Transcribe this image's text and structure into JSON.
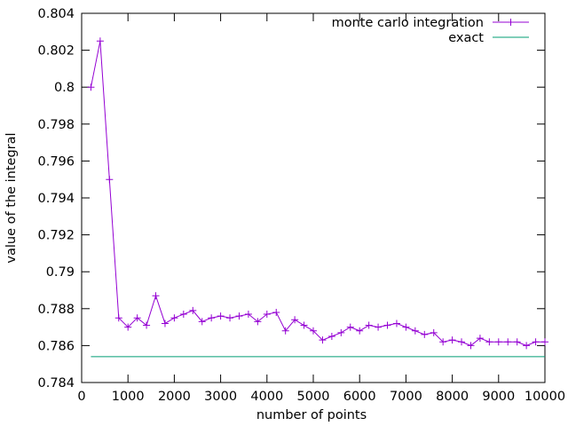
{
  "chart_data": {
    "type": "line",
    "title": "",
    "xlabel": "number of points",
    "ylabel": "value of the integral",
    "xlim": [
      0,
      10000
    ],
    "ylim": [
      0.784,
      0.804
    ],
    "x_ticks": [
      0,
      1000,
      2000,
      3000,
      4000,
      5000,
      6000,
      7000,
      8000,
      9000,
      10000
    ],
    "x_tick_labels": [
      "0",
      "1000",
      "2000",
      "3000",
      "4000",
      "5000",
      "6000",
      "7000",
      "8000",
      "9000",
      "10000"
    ],
    "y_ticks": [
      0.784,
      0.786,
      0.788,
      0.79,
      0.792,
      0.794,
      0.796,
      0.798,
      0.8,
      0.802,
      0.804
    ],
    "y_tick_labels": [
      "0.784",
      "0.786",
      "0.788",
      "0.79",
      "0.792",
      "0.794",
      "0.796",
      "0.798",
      "0.8",
      "0.802",
      "0.804"
    ],
    "grid": false,
    "legend_position": "top-right",
    "series": [
      {
        "name": "monte carlo integration",
        "color": "#9400d3",
        "marker": "plus",
        "x": [
          200,
          400,
          600,
          800,
          1000,
          1200,
          1400,
          1600,
          1800,
          2000,
          2200,
          2400,
          2600,
          2800,
          3000,
          3200,
          3400,
          3600,
          3800,
          4000,
          4200,
          4400,
          4600,
          4800,
          5000,
          5200,
          5400,
          5600,
          5800,
          6000,
          6200,
          6400,
          6600,
          6800,
          7000,
          7200,
          7400,
          7600,
          7800,
          8000,
          8200,
          8400,
          8600,
          8800,
          9000,
          9200,
          9400,
          9600,
          9800,
          10000
        ],
        "y": [
          0.8,
          0.8025,
          0.795,
          0.7875,
          0.787,
          0.7875,
          0.7871,
          0.7887,
          0.7872,
          0.7875,
          0.7877,
          0.7879,
          0.7873,
          0.7875,
          0.7876,
          0.7875,
          0.7876,
          0.7877,
          0.7873,
          0.7877,
          0.7878,
          0.7868,
          0.7874,
          0.7871,
          0.7868,
          0.7863,
          0.7865,
          0.7867,
          0.787,
          0.7868,
          0.7871,
          0.787,
          0.7871,
          0.7872,
          0.787,
          0.7868,
          0.7866,
          0.7867,
          0.7862,
          0.7863,
          0.7862,
          0.786,
          0.7864,
          0.7862,
          0.7862,
          0.7862,
          0.7862,
          0.786,
          0.7862,
          0.7862
        ]
      },
      {
        "name": "exact",
        "color": "#009e73",
        "marker": "none",
        "x": [
          200,
          10000
        ],
        "y": [
          0.785398,
          0.785398
        ]
      }
    ]
  }
}
